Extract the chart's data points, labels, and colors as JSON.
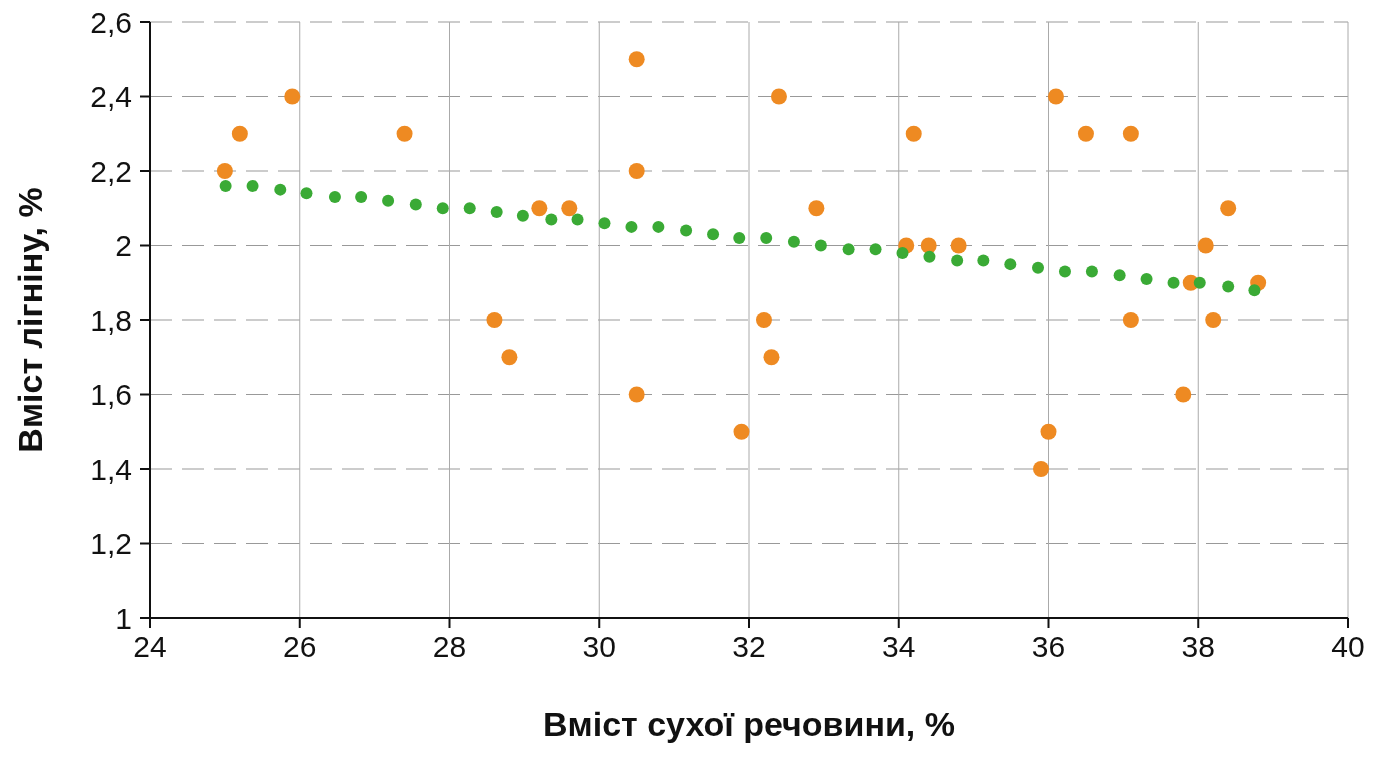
{
  "chart_data": {
    "type": "scatter",
    "xlabel": "Вміст сухої речовини, %",
    "ylabel": "Вміст лігніну, %",
    "xlim": [
      24,
      40
    ],
    "xticks": [
      24,
      26,
      28,
      30,
      32,
      34,
      36,
      38,
      40
    ],
    "ylim": [
      1,
      2.6
    ],
    "yticks": [
      1,
      {
        "value": 1.2,
        "label": "1,2"
      },
      {
        "value": 1.4,
        "label": "1,4"
      },
      {
        "value": 1.6,
        "label": "1,6"
      },
      {
        "value": 1.8,
        "label": "1,8"
      },
      2,
      {
        "value": 2.2,
        "label": "2,2"
      },
      {
        "value": 2.4,
        "label": "2,4"
      },
      {
        "value": 2.6,
        "label": "2,6"
      }
    ],
    "grid": true,
    "legend": false,
    "marker": "circle",
    "series": [
      {
        "color": "#ee8a22",
        "x": [
          25.0,
          25.2,
          25.9,
          27.4,
          28.6,
          28.8,
          29.2,
          29.6,
          30.5,
          30.5,
          30.5,
          31.9,
          32.2,
          32.3,
          32.4,
          32.9,
          34.1,
          34.2,
          34.4,
          34.8,
          35.9,
          36.0,
          36.1,
          36.5,
          37.1,
          37.1,
          37.8,
          37.9,
          38.1,
          38.2,
          38.4,
          38.8
        ],
        "values": [
          2.2,
          2.3,
          2.4,
          2.3,
          1.8,
          1.7,
          2.1,
          2.1,
          2.5,
          2.2,
          1.6,
          1.5,
          1.8,
          1.7,
          2.4,
          2.1,
          2.0,
          2.3,
          2.0,
          2.0,
          1.4,
          1.5,
          2.4,
          2.3,
          1.8,
          2.3,
          1.6,
          1.9,
          2.0,
          1.8,
          2.1,
          1.9
        ]
      },
      {
        "color": "#3aaa35",
        "x": [
          25.01,
          25.37,
          25.74,
          26.09,
          26.47,
          26.82,
          27.18,
          27.55,
          27.91,
          28.27,
          28.63,
          28.98,
          29.36,
          29.71,
          30.07,
          30.43,
          30.79,
          31.16,
          31.52,
          31.87,
          32.23,
          32.6,
          32.96,
          33.33,
          33.69,
          34.05,
          34.41,
          34.78,
          35.13,
          35.49,
          35.86,
          36.22,
          36.58,
          36.95,
          37.31,
          37.67,
          38.02,
          38.4,
          38.75
        ],
        "values": [
          2.16,
          2.16,
          2.15,
          2.14,
          2.13,
          2.13,
          2.12,
          2.11,
          2.1,
          2.1,
          2.09,
          2.08,
          2.07,
          2.07,
          2.06,
          2.05,
          2.05,
          2.04,
          2.03,
          2.02,
          2.02,
          2.01,
          2.0,
          1.99,
          1.99,
          1.98,
          1.97,
          1.96,
          1.96,
          1.95,
          1.94,
          1.93,
          1.93,
          1.92,
          1.91,
          1.9,
          1.9,
          1.89,
          1.88
        ]
      }
    ]
  }
}
